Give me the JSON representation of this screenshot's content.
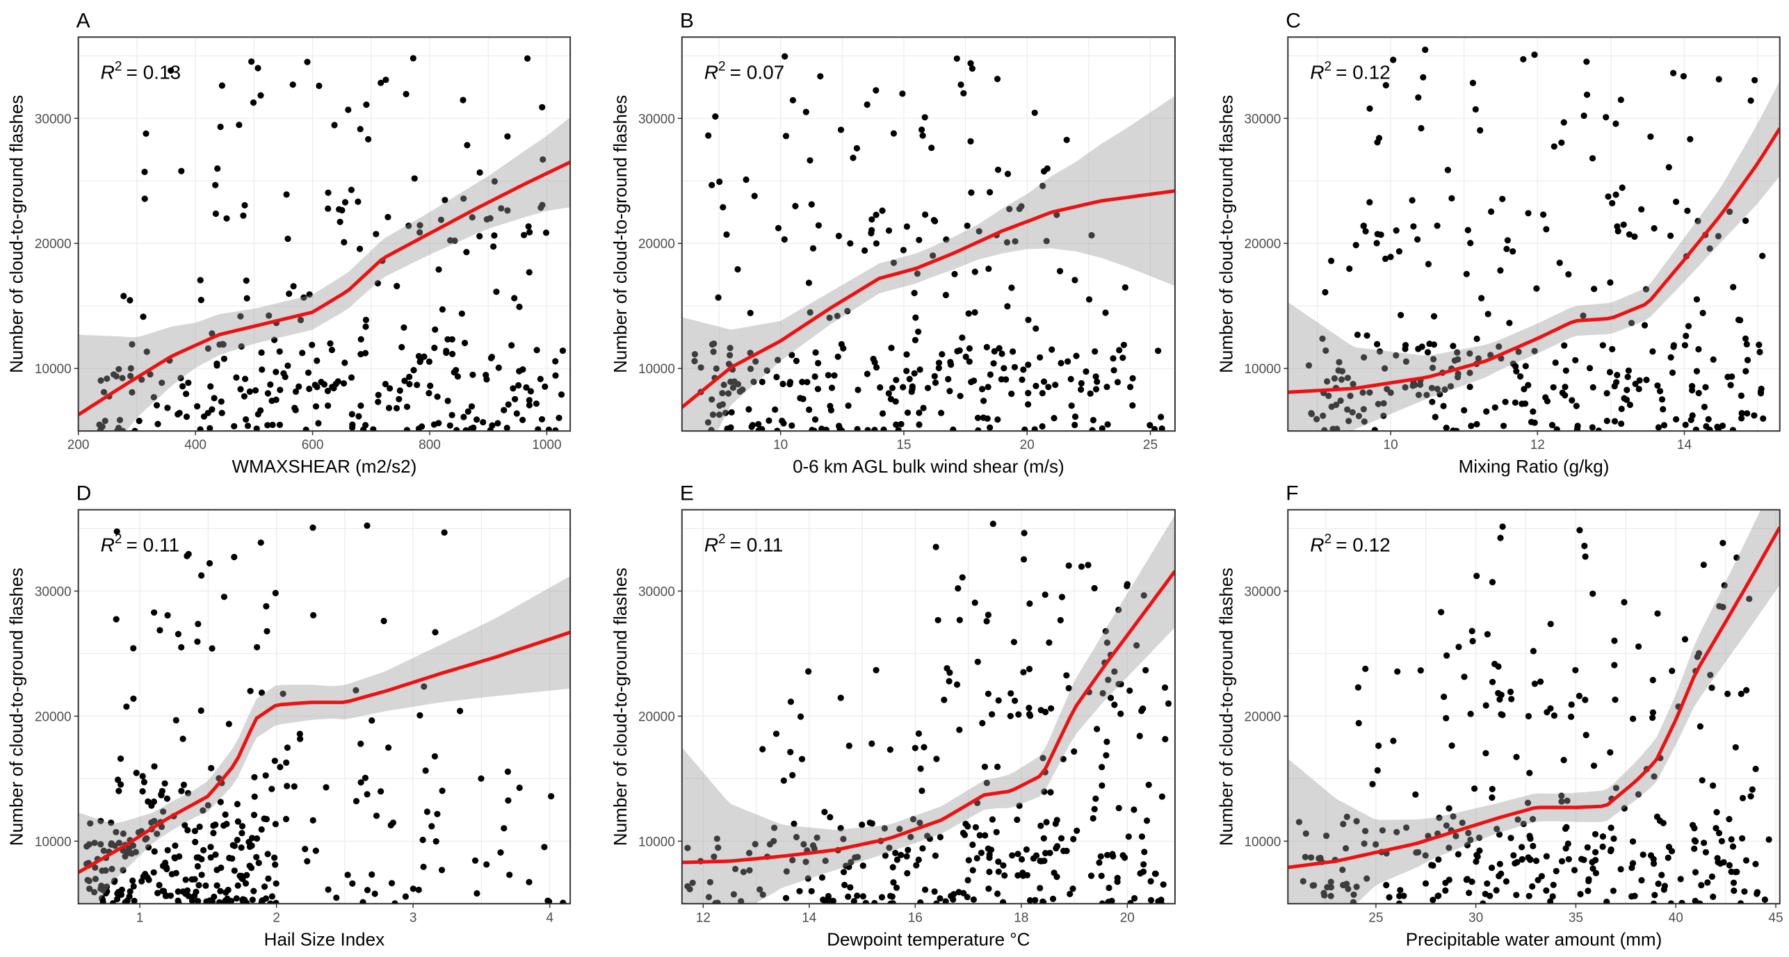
{
  "chart_data": [
    {
      "type": "scatter",
      "panel": "A",
      "xlabel": "WMAXSHEAR (m2/s2)",
      "ylabel": "Number of cloud-to-ground flashes",
      "xlim": [
        200,
        1040
      ],
      "ylim": [
        5000,
        36500
      ],
      "xticks": [
        200,
        400,
        600,
        800,
        1000
      ],
      "yticks": [
        10000,
        20000,
        30000
      ],
      "r2_prefix": "R",
      "r2_exp": "2",
      "r2_value": "= 0.13",
      "fit": {
        "x": [
          200,
          280,
          360,
          440,
          520,
          600,
          660,
          720,
          800,
          880,
          960,
          1040
        ],
        "y": [
          6300,
          8700,
          11000,
          12700,
          13600,
          14500,
          16200,
          18800,
          20800,
          22800,
          24700,
          26500
        ]
      },
      "band": {
        "x": [
          200,
          300,
          400,
          500,
          600,
          700,
          800,
          900,
          1000,
          1040
        ],
        "half": [
          6400,
          3200,
          1800,
          1400,
          1400,
          1500,
          1700,
          2100,
          3000,
          3600
        ]
      },
      "seed": 11,
      "regions": [
        {
          "xr": [
            220,
            1030
          ],
          "yr": [
            5000,
            12000
          ],
          "n": 170
        },
        {
          "xr": [
            260,
            1000
          ],
          "yr": [
            8000,
            24000
          ],
          "n": 90
        },
        {
          "xr": [
            300,
            1000
          ],
          "yr": [
            20000,
            35000
          ],
          "n": 55
        }
      ]
    },
    {
      "type": "scatter",
      "panel": "B",
      "xlabel": "0-6 km AGL bulk wind shear (m/s)",
      "ylabel": "Number of cloud-to-ground flashes",
      "xlim": [
        6,
        26
      ],
      "ylim": [
        5000,
        36500
      ],
      "xticks": [
        10,
        15,
        20,
        25
      ],
      "yticks": [
        10000,
        20000,
        30000
      ],
      "r2_prefix": "R",
      "r2_exp": "2",
      "r2_value": "= 0.07",
      "fit": {
        "x": [
          6,
          8,
          10,
          12,
          14,
          15.5,
          17,
          19,
          21,
          23,
          26
        ],
        "y": [
          6900,
          10100,
          12200,
          14800,
          17200,
          18000,
          19200,
          21000,
          22500,
          23400,
          24200
        ]
      },
      "band": {
        "x": [
          6,
          8,
          10,
          12,
          14,
          16,
          18,
          20,
          22,
          24,
          26
        ],
        "half": [
          7200,
          3000,
          1600,
          1300,
          1200,
          1200,
          1400,
          2200,
          3600,
          5500,
          7600
        ]
      },
      "seed": 23,
      "regions": [
        {
          "xr": [
            6.5,
            25.5
          ],
          "yr": [
            5000,
            12000
          ],
          "n": 170
        },
        {
          "xr": [
            7,
            24
          ],
          "yr": [
            8000,
            24000
          ],
          "n": 90
        },
        {
          "xr": [
            7,
            22
          ],
          "yr": [
            20000,
            35000
          ],
          "n": 55
        }
      ]
    },
    {
      "type": "scatter",
      "panel": "C",
      "xlabel": "Mixing Ratio (g/kg)",
      "ylabel": "Number of cloud-to-ground flashes",
      "xlim": [
        8.6,
        15.3
      ],
      "ylim": [
        5000,
        36500
      ],
      "xticks": [
        10,
        12,
        14
      ],
      "yticks": [
        10000,
        20000,
        30000
      ],
      "r2_prefix": "R",
      "r2_exp": "2",
      "r2_value": "= 0.12",
      "fit": {
        "x": [
          8.6,
          9.5,
          10.5,
          11.3,
          12,
          12.5,
          13,
          13.5,
          14,
          14.5,
          15,
          15.3
        ],
        "y": [
          8100,
          8400,
          9300,
          10600,
          12400,
          13800,
          14000,
          15200,
          18700,
          22300,
          26400,
          29200
        ]
      },
      "band": {
        "x": [
          8.6,
          9.5,
          10.5,
          11.5,
          12.5,
          13.5,
          14.5,
          15.3
        ],
        "half": [
          7200,
          3300,
          1700,
          1200,
          1200,
          1300,
          2200,
          3800
        ]
      },
      "seed": 37,
      "regions": [
        {
          "xr": [
            8.8,
            15.2
          ],
          "yr": [
            5000,
            12000
          ],
          "n": 170
        },
        {
          "xr": [
            9,
            15.2
          ],
          "yr": [
            8000,
            24000
          ],
          "n": 90
        },
        {
          "xr": [
            9.5,
            15
          ],
          "yr": [
            20000,
            35500
          ],
          "n": 55
        }
      ]
    },
    {
      "type": "scatter",
      "panel": "D",
      "xlabel": "Hail Size Index",
      "ylabel": "Number of cloud-to-ground flashes",
      "xlim": [
        0.55,
        4.15
      ],
      "ylim": [
        5000,
        36500
      ],
      "xticks": [
        1,
        2,
        3,
        4
      ],
      "yticks": [
        10000,
        20000,
        30000
      ],
      "r2_prefix": "R",
      "r2_exp": "2",
      "r2_value": "= 0.11",
      "fit": {
        "x": [
          0.55,
          0.9,
          1.2,
          1.5,
          1.7,
          1.85,
          2.0,
          2.25,
          2.5,
          2.8,
          3.2,
          3.6,
          4.15
        ],
        "y": [
          7500,
          9700,
          11800,
          13600,
          16200,
          19800,
          20900,
          21100,
          21100,
          22000,
          23400,
          24700,
          26700
        ]
      },
      "band": {
        "x": [
          0.55,
          0.8,
          1.1,
          1.4,
          1.7,
          2.0,
          2.4,
          2.8,
          3.2,
          3.6,
          4.15
        ],
        "half": [
          4800,
          2300,
          1200,
          1100,
          1500,
          1600,
          1300,
          1600,
          2300,
          3100,
          4500
        ]
      },
      "seed": 53,
      "regions": [
        {
          "xr": [
            0.6,
            2.0
          ],
          "yr": [
            5000,
            12000
          ],
          "n": 190
        },
        {
          "xr": [
            0.7,
            4.1
          ],
          "yr": [
            5000,
            16000
          ],
          "n": 70
        },
        {
          "xr": [
            0.8,
            2.2
          ],
          "yr": [
            12000,
            35000
          ],
          "n": 65
        },
        {
          "xr": [
            2.2,
            3.8
          ],
          "yr": [
            14000,
            36000
          ],
          "n": 18
        }
      ]
    },
    {
      "type": "scatter",
      "panel": "E",
      "xlabel": "Dewpoint temperature °C",
      "ylabel": "Number of cloud-to-ground flashes",
      "xlim": [
        11.6,
        20.9
      ],
      "ylim": [
        5000,
        36500
      ],
      "xticks": [
        12,
        14,
        16,
        18,
        20
      ],
      "yticks": [
        10000,
        20000,
        30000
      ],
      "r2_prefix": "R",
      "r2_exp": "2",
      "r2_value": "= 0.11",
      "fit": {
        "x": [
          11.6,
          12.5,
          13.5,
          14.5,
          15.5,
          16.5,
          17.3,
          17.8,
          18.4,
          19.0,
          19.6,
          20.2,
          20.9
        ],
        "y": [
          8300,
          8400,
          8800,
          9300,
          10200,
          11700,
          13700,
          14000,
          15300,
          20600,
          24200,
          27600,
          31600
        ]
      },
      "band": {
        "x": [
          11.6,
          12.5,
          13.5,
          14.5,
          15.5,
          16.5,
          17.5,
          18.5,
          19.5,
          20.9
        ],
        "half": [
          9200,
          4600,
          2500,
          1600,
          1100,
          1100,
          1200,
          1700,
          2700,
          4500
        ]
      },
      "seed": 71,
      "regions": [
        {
          "xr": [
            11.7,
            20.8
          ],
          "yr": [
            5000,
            12000
          ],
          "n": 180
        },
        {
          "xr": [
            13,
            20.8
          ],
          "yr": [
            8000,
            24000
          ],
          "n": 90
        },
        {
          "xr": [
            16,
            20.5
          ],
          "yr": [
            20000,
            35500
          ],
          "n": 55
        }
      ]
    },
    {
      "type": "scatter",
      "panel": "F",
      "xlabel": "Precipitable water amount (mm)",
      "ylabel": "Number of cloud-to-ground flashes",
      "xlim": [
        20.6,
        45.2
      ],
      "ylim": [
        5000,
        36500
      ],
      "xticks": [
        25,
        30,
        35,
        40,
        45
      ],
      "yticks": [
        10000,
        20000,
        30000
      ],
      "r2_prefix": "R",
      "r2_exp": "2",
      "r2_value": "= 0.12",
      "fit": {
        "x": [
          20.6,
          23,
          25,
          27,
          29,
          31,
          33,
          35,
          36.5,
          38,
          39,
          40,
          41,
          42,
          43.5,
          45.2
        ],
        "y": [
          7900,
          8400,
          9100,
          9800,
          10800,
          11800,
          12700,
          12700,
          12800,
          14800,
          16400,
          19700,
          23500,
          26200,
          30300,
          35100
        ]
      },
      "band": {
        "x": [
          20.6,
          23,
          25,
          28,
          31,
          34,
          37,
          40,
          42.5,
          45.2
        ],
        "half": [
          8700,
          5000,
          2600,
          1600,
          1200,
          1100,
          1300,
          2000,
          3200,
          4600
        ]
      },
      "seed": 89,
      "regions": [
        {
          "xr": [
            21,
            45
          ],
          "yr": [
            5000,
            12000
          ],
          "n": 180
        },
        {
          "xr": [
            24,
            44
          ],
          "yr": [
            8000,
            24000
          ],
          "n": 90
        },
        {
          "xr": [
            28,
            44
          ],
          "yr": [
            20000,
            35500
          ],
          "n": 55
        }
      ]
    }
  ]
}
